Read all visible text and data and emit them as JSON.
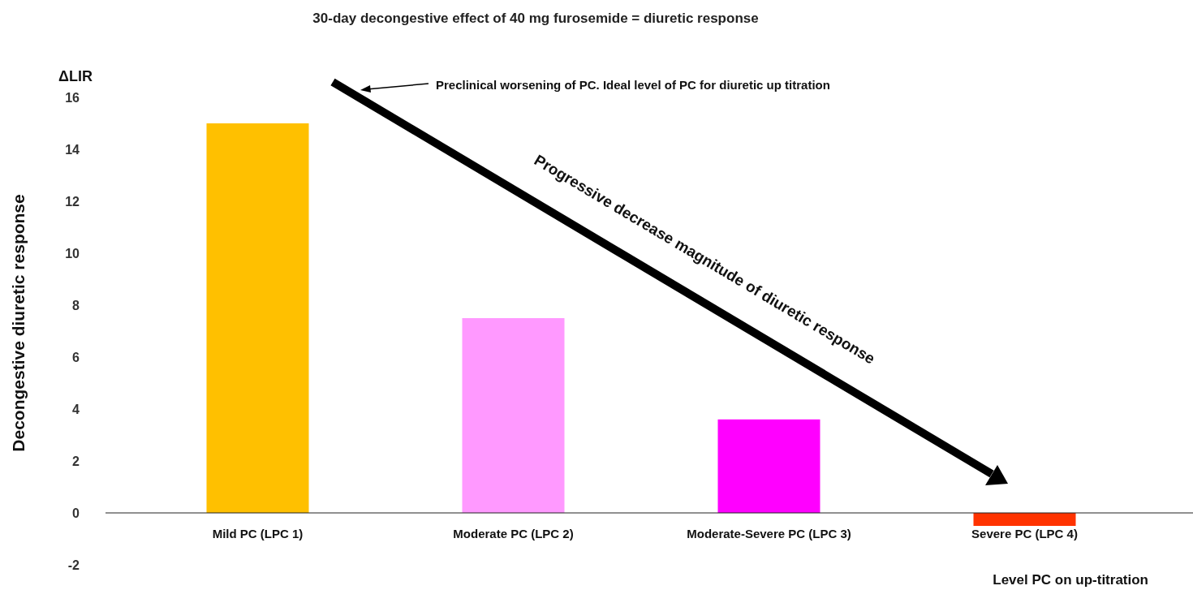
{
  "chart_data": {
    "type": "bar",
    "title": "30-day decongestive effect of 40 mg furosemide = diuretic response",
    "ylabel": "Decongestive diuretic response",
    "xlabel": "Level PC on up-titration",
    "categories": [
      "Mild PC (LPC 1)",
      "Moderate PC (LPC 2)",
      "Moderate-Severe PC (LPC 3)",
      "Severe PC (LPC 4)"
    ],
    "values": [
      15,
      7.5,
      3.6,
      -0.5
    ],
    "colors": [
      "#ffc000",
      "#ff99ff",
      "#ff00ff",
      "#ff3300"
    ],
    "ylim": [
      -2,
      16
    ],
    "yticks": [
      -2,
      0,
      2,
      4,
      6,
      8,
      10,
      12,
      14,
      16
    ],
    "grid": false,
    "annotations": [
      "ΔLIR",
      "Preclinical worsening of PC. Ideal level of PC for diuretic up titration",
      "Progressive decrease magnitude of diuretic response"
    ]
  }
}
